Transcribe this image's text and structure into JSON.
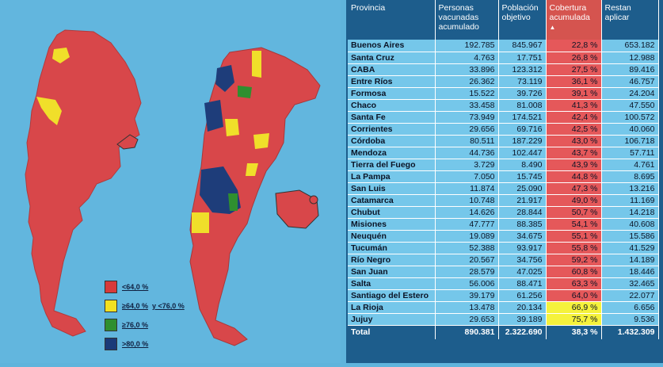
{
  "legend": [
    {
      "label": "<64,0 %",
      "label2": "",
      "color": "#d83a3a"
    },
    {
      "label": "≥64,0 %",
      "label2": "y <76,0 %",
      "color": "#f2e020"
    },
    {
      "label": "≥76,0 %",
      "label2": "",
      "color": "#2f8f2f"
    },
    {
      "label": ">80,0 %",
      "label2": "",
      "color": "#1a3a78"
    }
  ],
  "table": {
    "headers": {
      "provincia": "Provincia",
      "personas": "Personas vacunadas acumulado",
      "poblacion": "Población objetivo",
      "cobertura": "Cobertura acumulada",
      "restan": "Restan aplicar"
    },
    "sort_icon": "sort-up-icon",
    "rows": [
      {
        "p": "Buenos Aires",
        "v": "192.785",
        "o": "845.967",
        "c": "22,8 %",
        "r": "653.182",
        "hi": false
      },
      {
        "p": "Santa Cruz",
        "v": "4.763",
        "o": "17.751",
        "c": "26,8 %",
        "r": "12.988",
        "hi": false
      },
      {
        "p": "CABA",
        "v": "33.896",
        "o": "123.312",
        "c": "27,5 %",
        "r": "89.416",
        "hi": false
      },
      {
        "p": "Entre Ríos",
        "v": "26.362",
        "o": "73.119",
        "c": "36,1 %",
        "r": "46.757",
        "hi": false
      },
      {
        "p": "Formosa",
        "v": "15.522",
        "o": "39.726",
        "c": "39,1 %",
        "r": "24.204",
        "hi": false
      },
      {
        "p": "Chaco",
        "v": "33.458",
        "o": "81.008",
        "c": "41,3 %",
        "r": "47.550",
        "hi": false
      },
      {
        "p": "Santa Fe",
        "v": "73.949",
        "o": "174.521",
        "c": "42,4 %",
        "r": "100.572",
        "hi": false
      },
      {
        "p": "Corrientes",
        "v": "29.656",
        "o": "69.716",
        "c": "42,5 %",
        "r": "40.060",
        "hi": false
      },
      {
        "p": "Córdoba",
        "v": "80.511",
        "o": "187.229",
        "c": "43,0 %",
        "r": "106.718",
        "hi": false
      },
      {
        "p": "Mendoza",
        "v": "44.736",
        "o": "102.447",
        "c": "43,7 %",
        "r": "57.711",
        "hi": false
      },
      {
        "p": "Tierra del Fuego",
        "v": "3.729",
        "o": "8.490",
        "c": "43,9 %",
        "r": "4.761",
        "hi": false
      },
      {
        "p": "La Pampa",
        "v": "7.050",
        "o": "15.745",
        "c": "44,8 %",
        "r": "8.695",
        "hi": false
      },
      {
        "p": "San Luis",
        "v": "11.874",
        "o": "25.090",
        "c": "47,3 %",
        "r": "13.216",
        "hi": false
      },
      {
        "p": "Catamarca",
        "v": "10.748",
        "o": "21.917",
        "c": "49,0 %",
        "r": "11.169",
        "hi": false
      },
      {
        "p": "Chubut",
        "v": "14.626",
        "o": "28.844",
        "c": "50,7 %",
        "r": "14.218",
        "hi": false
      },
      {
        "p": "Misiones",
        "v": "47.777",
        "o": "88.385",
        "c": "54,1 %",
        "r": "40.608",
        "hi": false
      },
      {
        "p": "Neuquén",
        "v": "19.089",
        "o": "34.675",
        "c": "55,1 %",
        "r": "15.586",
        "hi": false
      },
      {
        "p": "Tucumán",
        "v": "52.388",
        "o": "93.917",
        "c": "55,8 %",
        "r": "41.529",
        "hi": false
      },
      {
        "p": "Río Negro",
        "v": "20.567",
        "o": "34.756",
        "c": "59,2 %",
        "r": "14.189",
        "hi": false
      },
      {
        "p": "San Juan",
        "v": "28.579",
        "o": "47.025",
        "c": "60,8 %",
        "r": "18.446",
        "hi": false
      },
      {
        "p": "Salta",
        "v": "56.006",
        "o": "88.471",
        "c": "63,3 %",
        "r": "32.465",
        "hi": false
      },
      {
        "p": "Santiago del Estero",
        "v": "39.179",
        "o": "61.256",
        "c": "64,0 %",
        "r": "22.077",
        "hi": false
      },
      {
        "p": "La Rioja",
        "v": "13.478",
        "o": "20.134",
        "c": "66,9 %",
        "r": "6.656",
        "hi": true
      },
      {
        "p": "Jujuy",
        "v": "29.653",
        "o": "39.189",
        "c": "75,7 %",
        "r": "9.536",
        "hi": true
      }
    ],
    "total": {
      "p": "Total",
      "v": "890.381",
      "o": "2.322.690",
      "c": "38,3 %",
      "r": "1.432.309"
    }
  }
}
